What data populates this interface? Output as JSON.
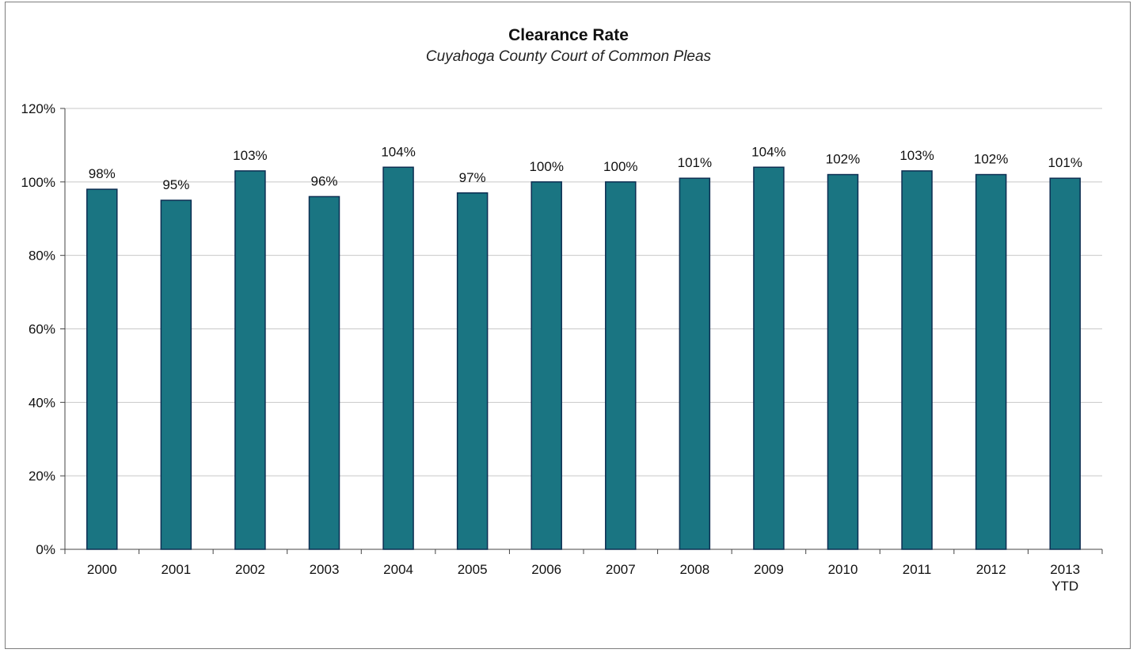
{
  "chart_data": {
    "type": "bar",
    "title": "Clearance Rate",
    "subtitle": "Cuyahoga County Court of Common Pleas",
    "categories": [
      [
        "2000"
      ],
      [
        "2001"
      ],
      [
        "2002"
      ],
      [
        "2003"
      ],
      [
        "2004"
      ],
      [
        "2005"
      ],
      [
        "2006"
      ],
      [
        "2007"
      ],
      [
        "2008"
      ],
      [
        "2009"
      ],
      [
        "2010"
      ],
      [
        "2011"
      ],
      [
        "2012"
      ],
      [
        "2013",
        "YTD"
      ]
    ],
    "values": [
      98,
      95,
      103,
      96,
      104,
      97,
      100,
      100,
      101,
      104,
      102,
      103,
      102,
      101
    ],
    "data_labels": [
      "98%",
      "95%",
      "103%",
      "96%",
      "104%",
      "97%",
      "100%",
      "100%",
      "101%",
      "104%",
      "102%",
      "103%",
      "102%",
      "101%"
    ],
    "y_ticks": [
      0,
      20,
      40,
      60,
      80,
      100,
      120
    ],
    "y_tick_labels": [
      "0%",
      "20%",
      "40%",
      "60%",
      "80%",
      "100%",
      "120%"
    ],
    "ylim": [
      0,
      120
    ],
    "grid": true,
    "legend": "none",
    "xlabel": "",
    "ylabel": "",
    "bar_color": "#1a7582",
    "bar_edge_color": "#0d2e52",
    "grid_color": "#c8c8c8"
  }
}
